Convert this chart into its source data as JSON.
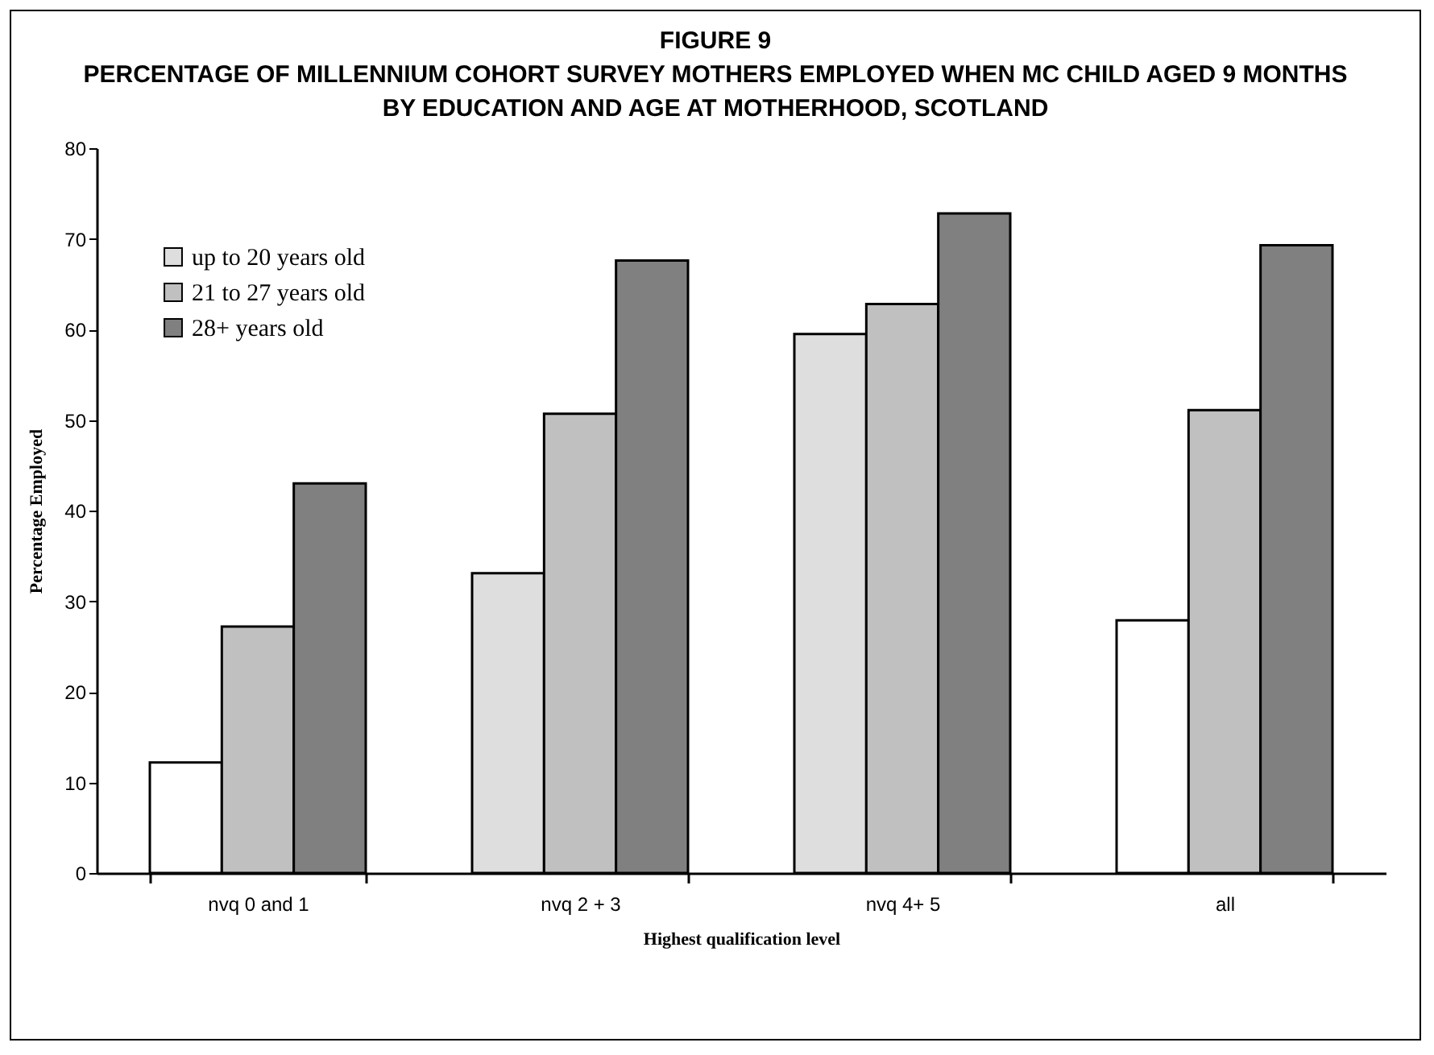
{
  "chart_data": {
    "type": "bar",
    "title": "FIGURE 9",
    "subtitle": "PERCENTAGE OF MILLENNIUM COHORT SURVEY MOTHERS EMPLOYED WHEN MC CHILD AGED 9 MONTHS BY EDUCATION AND AGE AT MOTHERHOOD, SCOTLAND",
    "xlabel": "Highest qualification level",
    "ylabel": "Percentage Employed",
    "categories": [
      "nvq 0 and 1",
      "nvq 2 + 3",
      "nvq 4+ 5",
      "all"
    ],
    "series": [
      {
        "name": "up to 20 years old",
        "color": "#dedede",
        "colors": [
          "#ffffff",
          "#dedede",
          "#dedede",
          "#ffffff"
        ],
        "values": [
          12.2,
          33.1,
          59.5,
          27.9
        ]
      },
      {
        "name": "21 to 27 years old",
        "color": "#c0c0c0",
        "values": [
          27.2,
          50.7,
          62.8,
          51.1
        ]
      },
      {
        "name": "28+ years old",
        "color": "#808080",
        "values": [
          43.0,
          67.6,
          72.8,
          69.3
        ]
      }
    ],
    "ylim": [
      0,
      80
    ],
    "yticks": [
      0,
      10,
      20,
      30,
      40,
      50,
      60,
      70,
      80
    ],
    "grid": false,
    "legend": "top left"
  }
}
